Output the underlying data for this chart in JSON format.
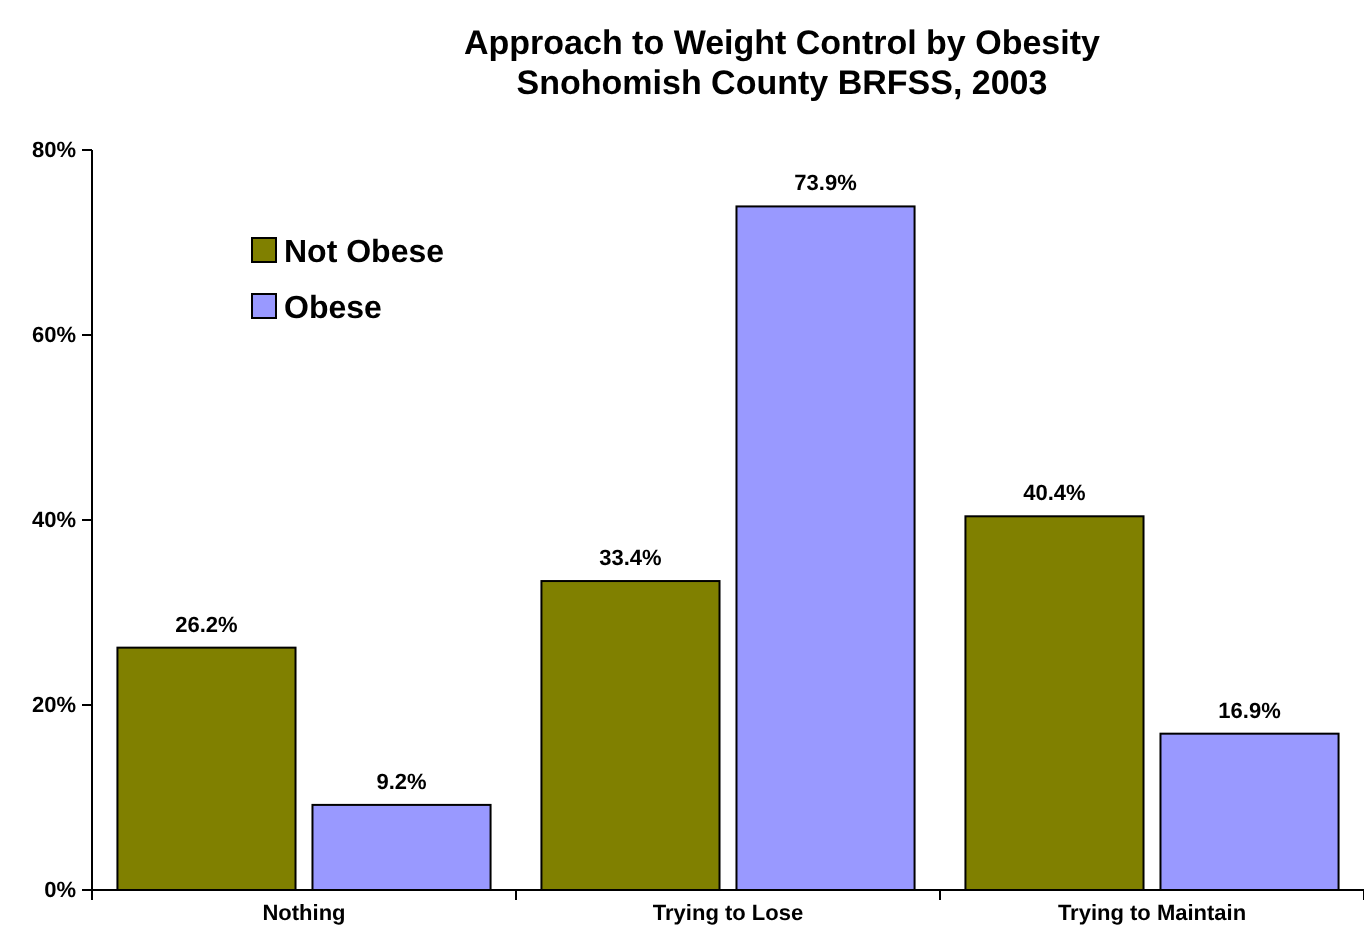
{
  "chart_data": {
    "type": "bar",
    "title": "Approach to Weight Control by Obesity\nSnohomish County BRFSS, 2003",
    "categories": [
      "Nothing",
      "Trying to Lose",
      "Trying to Maintain"
    ],
    "series": [
      {
        "name": "Not Obese",
        "color": "#808000",
        "values": [
          26.2,
          33.4,
          40.4
        ],
        "value_labels": [
          "26.2%",
          "33.4%",
          "40.4%"
        ]
      },
      {
        "name": "Obese",
        "color": "#9999ff",
        "values": [
          9.2,
          73.9,
          16.9
        ],
        "value_labels": [
          "9.2%",
          "73.9%",
          "16.9%"
        ]
      }
    ],
    "ylim": [
      0,
      80
    ],
    "yticks": [
      {
        "value": 0,
        "label": "0%"
      },
      {
        "value": 20,
        "label": "20%"
      },
      {
        "value": 40,
        "label": "40%"
      },
      {
        "value": 60,
        "label": "60%"
      },
      {
        "value": 80,
        "label": "80%"
      }
    ],
    "grid": false,
    "legend": "top left"
  }
}
